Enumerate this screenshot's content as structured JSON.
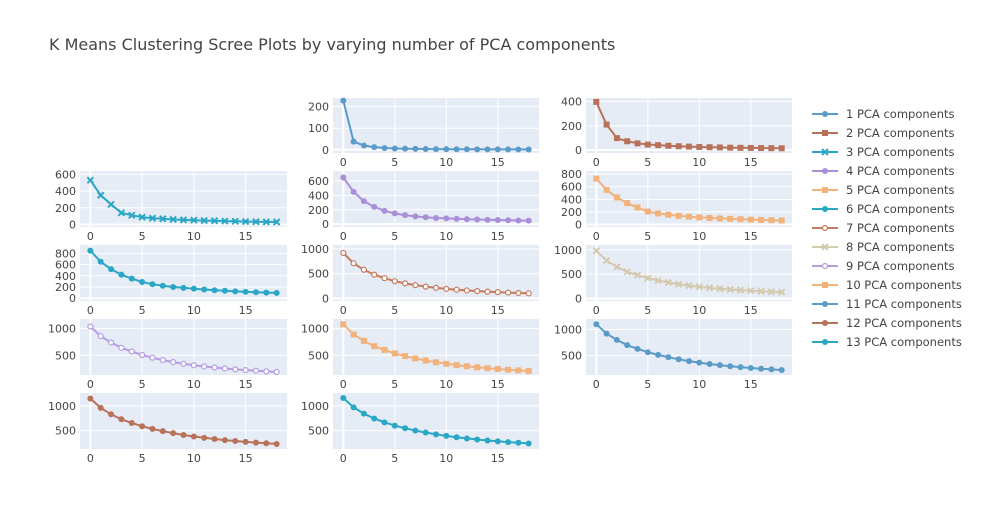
{
  "title": "K Means Clustering Scree Plots by varying number of PCA components",
  "chart_data": {
    "type": "line",
    "title": "K Means Clustering Scree Plots by varying number of PCA components",
    "x": [
      0,
      1,
      2,
      3,
      4,
      5,
      6,
      7,
      8,
      9,
      10,
      11,
      12,
      13,
      14,
      15,
      16,
      17,
      18
    ],
    "xticks": [
      0,
      5,
      10,
      15
    ],
    "xlim": [
      -1,
      19
    ],
    "legend_position": "right",
    "grid": true,
    "series": [
      {
        "name": "1 PCA components",
        "color": "#5b9bc8",
        "marker": "circle",
        "row": 0,
        "col": 1,
        "ylim": [
          -15,
          240
        ],
        "yticks": [
          0,
          100,
          200
        ],
        "values": [
          228,
          38,
          20,
          12,
          8,
          6,
          5,
          4,
          3.5,
          3,
          2.7,
          2.4,
          2.2,
          2,
          1.8,
          1.7,
          1.6,
          1.5,
          1.4
        ]
      },
      {
        "name": "2 PCA components",
        "color": "#b9725a",
        "marker": "square",
        "row": 0,
        "col": 2,
        "ylim": [
          -25,
          430
        ],
        "yticks": [
          0,
          200,
          400
        ],
        "values": [
          398,
          210,
          98,
          72,
          55,
          45,
          40,
          35,
          31,
          28,
          25,
          23,
          21,
          19,
          18,
          17,
          16,
          15,
          14
        ]
      },
      {
        "name": "3 PCA components",
        "color": "#2aa7c4",
        "marker": "x",
        "row": 1,
        "col": 0,
        "ylim": [
          -30,
          640
        ],
        "yticks": [
          0,
          200,
          400,
          600
        ],
        "values": [
          530,
          350,
          240,
          140,
          110,
          88,
          75,
          68,
          60,
          55,
          51,
          47,
          44,
          41,
          38,
          35,
          33,
          31,
          30
        ]
      },
      {
        "name": "4 PCA components",
        "color": "#a98ed8",
        "marker": "circle",
        "row": 1,
        "col": 1,
        "ylim": [
          -40,
          740
        ],
        "yticks": [
          0,
          200,
          400,
          600
        ],
        "values": [
          650,
          450,
          320,
          240,
          185,
          150,
          125,
          108,
          95,
          86,
          80,
          74,
          69,
          64,
          60,
          57,
          54,
          51,
          48
        ]
      },
      {
        "name": "5 PCA components",
        "color": "#f2b27c",
        "marker": "square",
        "row": 1,
        "col": 2,
        "ylim": [
          -40,
          850
        ],
        "yticks": [
          0,
          200,
          400,
          600,
          800
        ],
        "values": [
          730,
          550,
          430,
          340,
          270,
          205,
          175,
          155,
          138,
          124,
          113,
          104,
          96,
          89,
          83,
          77,
          72,
          67,
          63
        ]
      },
      {
        "name": "6 PCA components",
        "color": "#2aa7c4",
        "marker": "circle",
        "row": 2,
        "col": 0,
        "ylim": [
          -50,
          950
        ],
        "yticks": [
          0,
          200,
          400,
          600,
          800
        ],
        "values": [
          850,
          650,
          520,
          420,
          350,
          290,
          250,
          222,
          200,
          185,
          170,
          155,
          143,
          132,
          122,
          114,
          106,
          100,
          94
        ]
      },
      {
        "name": "7 PCA components",
        "color": "#c67b5c",
        "marker": "circle-open",
        "row": 2,
        "col": 1,
        "ylim": [
          -50,
          1080
        ],
        "yticks": [
          0,
          500,
          1000
        ],
        "values": [
          920,
          710,
          580,
          480,
          410,
          350,
          305,
          270,
          240,
          215,
          195,
          178,
          163,
          150,
          139,
          129,
          120,
          112,
          105
        ]
      },
      {
        "name": "8 PCA components",
        "color": "#d4cab0",
        "marker": "x",
        "row": 2,
        "col": 2,
        "ylim": [
          -50,
          1100
        ],
        "yticks": [
          0,
          500,
          1000
        ],
        "values": [
          980,
          780,
          650,
          550,
          480,
          420,
          370,
          330,
          295,
          266,
          242,
          220,
          202,
          187,
          173,
          161,
          150,
          140,
          131
        ]
      },
      {
        "name": "9 PCA components",
        "color": "#b49de2",
        "marker": "circle-open",
        "row": 3,
        "col": 0,
        "ylim": [
          130,
          1180
        ],
        "yticks": [
          500,
          1000
        ],
        "values": [
          1040,
          860,
          740,
          640,
          570,
          505,
          455,
          410,
          372,
          340,
          313,
          290,
          270,
          252,
          236,
          222,
          210,
          198,
          188
        ]
      },
      {
        "name": "10 PCA components",
        "color": "#f2b27c",
        "marker": "square",
        "row": 3,
        "col": 1,
        "ylim": [
          130,
          1180
        ],
        "yticks": [
          500,
          1000
        ],
        "values": [
          1080,
          890,
          770,
          670,
          600,
          535,
          485,
          440,
          402,
          368,
          340,
          315,
          294,
          275,
          258,
          243,
          229,
          216,
          205
        ]
      },
      {
        "name": "11 PCA components",
        "color": "#5b9bc8",
        "marker": "circle",
        "row": 3,
        "col": 2,
        "ylim": [
          130,
          1200
        ],
        "yticks": [
          500,
          1000
        ],
        "values": [
          1100,
          920,
          800,
          700,
          630,
          565,
          515,
          470,
          430,
          395,
          366,
          340,
          318,
          298,
          280,
          264,
          250,
          237,
          225
        ]
      },
      {
        "name": "12 PCA components",
        "color": "#b9725a",
        "marker": "circle",
        "row": 4,
        "col": 0,
        "ylim": [
          130,
          1260
        ],
        "yticks": [
          500,
          1000
        ],
        "values": [
          1150,
          960,
          830,
          730,
          655,
          590,
          535,
          490,
          450,
          413,
          382,
          355,
          331,
          310,
          291,
          274,
          259,
          245,
          232
        ]
      },
      {
        "name": "13 PCA components",
        "color": "#2aa7c4",
        "marker": "circle",
        "row": 4,
        "col": 1,
        "ylim": [
          130,
          1260
        ],
        "yticks": [
          500,
          1000
        ],
        "values": [
          1160,
          970,
          845,
          745,
          668,
          602,
          548,
          502,
          462,
          426,
          394,
          367,
          343,
          321,
          302,
          285,
          269,
          255,
          242
        ]
      }
    ]
  }
}
